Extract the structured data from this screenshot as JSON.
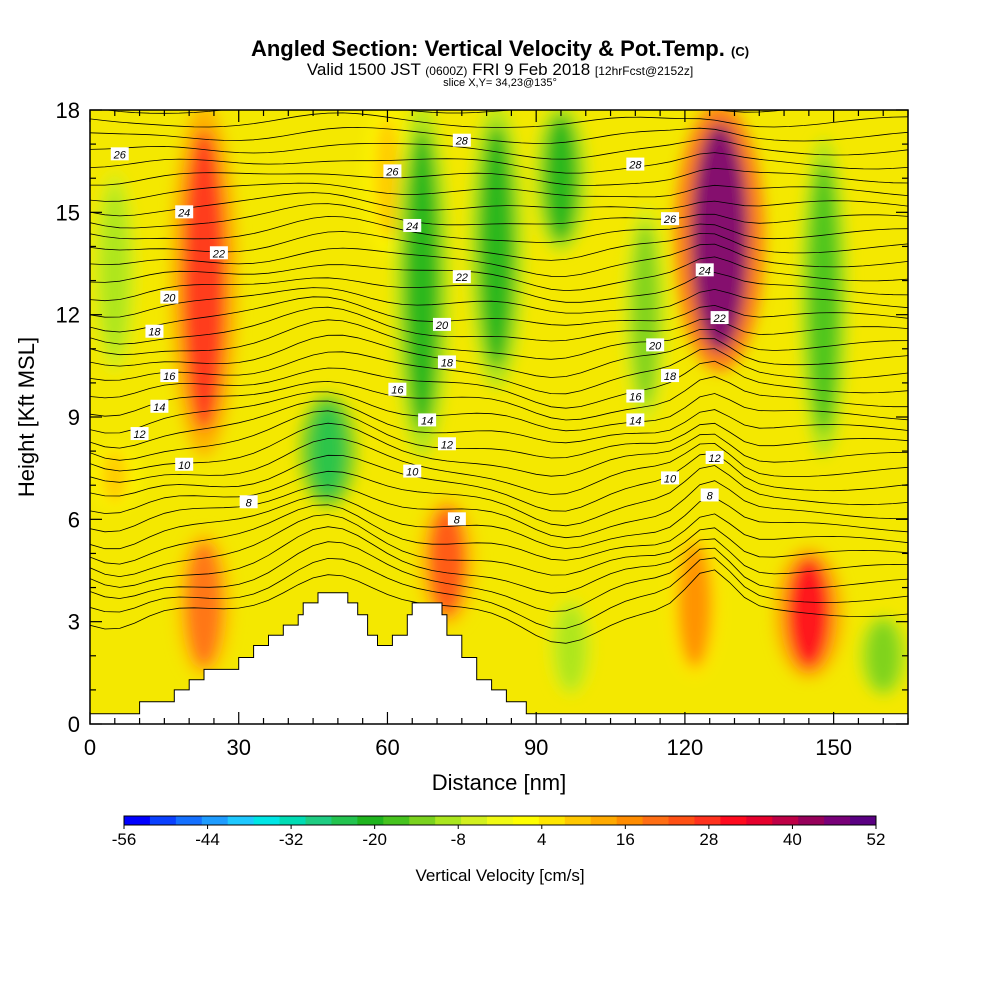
{
  "title": "Angled Section: Vertical Velocity & Pot.Temp.",
  "title_mark": "(C)",
  "subtitle_main": "Valid 1500 JST",
  "subtitle_z": "(0600Z)",
  "subtitle_date": "FRI 9 Feb 2018",
  "subtitle_fcst": "[12hrFcst@2152z]",
  "slice_text": "slice X,Y= 34,23@135°",
  "chart_data": {
    "type": "heatmap",
    "xlabel": "Distance [nm]",
    "ylabel": "Height [Kft MSL]",
    "xlim": [
      0,
      165
    ],
    "ylim": [
      0,
      18
    ],
    "x_ticks": [
      "0",
      "30",
      "60",
      "90",
      "120",
      "150"
    ],
    "y_ticks": [
      "0",
      "3",
      "6",
      "9",
      "12",
      "15",
      "18"
    ],
    "colorbar": {
      "label": "Vertical Velocity [cm/s]",
      "min": -56,
      "max": 52,
      "step": 4,
      "tick_labels": [
        "-56",
        "-44",
        "-32",
        "-20",
        "-8",
        "4",
        "16",
        "28",
        "40",
        "52"
      ],
      "colors": [
        "#0000ff",
        "#0a40ff",
        "#1470ff",
        "#1e9cff",
        "#1ec8ff",
        "#00e6e6",
        "#00dcb4",
        "#1ecc82",
        "#23c34f",
        "#1fb41e",
        "#46c31e",
        "#7ad21e",
        "#aae61e",
        "#d2f01e",
        "#f0fa14",
        "#ffff00",
        "#ffe600",
        "#ffc800",
        "#ffaa00",
        "#ff8c00",
        "#ff6e14",
        "#ff5014",
        "#ff321e",
        "#ff0a1e",
        "#e6002d",
        "#be0046",
        "#96005a",
        "#780078",
        "#5a0082"
      ]
    },
    "terrain_profile": [
      {
        "x": 0,
        "height": 0.3
      },
      {
        "x": 10,
        "height": 0.3
      },
      {
        "x": 10,
        "height": 0.65
      },
      {
        "x": 17,
        "height": 0.65
      },
      {
        "x": 17,
        "height": 1.0
      },
      {
        "x": 20,
        "height": 1.0
      },
      {
        "x": 20,
        "height": 1.3
      },
      {
        "x": 23,
        "height": 1.3
      },
      {
        "x": 23,
        "height": 1.6
      },
      {
        "x": 30,
        "height": 1.6
      },
      {
        "x": 30,
        "height": 1.95
      },
      {
        "x": 33,
        "height": 1.95
      },
      {
        "x": 33,
        "height": 2.3
      },
      {
        "x": 36,
        "height": 2.3
      },
      {
        "x": 36,
        "height": 2.6
      },
      {
        "x": 39,
        "height": 2.6
      },
      {
        "x": 39,
        "height": 2.9
      },
      {
        "x": 42,
        "height": 2.9
      },
      {
        "x": 42,
        "height": 3.2
      },
      {
        "x": 43,
        "height": 3.2
      },
      {
        "x": 43,
        "height": 3.55
      },
      {
        "x": 46,
        "height": 3.55
      },
      {
        "x": 46,
        "height": 3.85
      },
      {
        "x": 52,
        "height": 3.85
      },
      {
        "x": 52,
        "height": 3.55
      },
      {
        "x": 54,
        "height": 3.55
      },
      {
        "x": 54,
        "height": 3.2
      },
      {
        "x": 56,
        "height": 3.2
      },
      {
        "x": 56,
        "height": 2.6
      },
      {
        "x": 58,
        "height": 2.6
      },
      {
        "x": 58,
        "height": 2.3
      },
      {
        "x": 61,
        "height": 2.3
      },
      {
        "x": 61,
        "height": 2.6
      },
      {
        "x": 64,
        "height": 2.6
      },
      {
        "x": 64,
        "height": 3.2
      },
      {
        "x": 65,
        "height": 3.2
      },
      {
        "x": 65,
        "height": 3.55
      },
      {
        "x": 71,
        "height": 3.55
      },
      {
        "x": 71,
        "height": 3.2
      },
      {
        "x": 72,
        "height": 3.2
      },
      {
        "x": 72,
        "height": 2.6
      },
      {
        "x": 75,
        "height": 2.6
      },
      {
        "x": 75,
        "height": 1.95
      },
      {
        "x": 78,
        "height": 1.95
      },
      {
        "x": 78,
        "height": 1.3
      },
      {
        "x": 81,
        "height": 1.3
      },
      {
        "x": 81,
        "height": 1.0
      },
      {
        "x": 84,
        "height": 1.0
      },
      {
        "x": 84,
        "height": 0.65
      },
      {
        "x": 88,
        "height": 0.65
      },
      {
        "x": 88,
        "height": 0.3
      },
      {
        "x": 165,
        "height": 0.3
      }
    ],
    "updraft_cores": [
      {
        "x": 23,
        "zmin": 8,
        "zmax": 18,
        "w": 32
      },
      {
        "x": 23,
        "zmin": 1.5,
        "zmax": 5.5,
        "w": 24
      },
      {
        "x": 127,
        "zmin": 10.5,
        "zmax": 18,
        "w": 52
      },
      {
        "x": 145,
        "zmin": 1.5,
        "zmax": 5,
        "w": 34
      },
      {
        "x": 72,
        "zmin": 3,
        "zmax": 6.5,
        "w": 26
      },
      {
        "x": 122,
        "zmin": 1.5,
        "zmax": 5.5,
        "w": 20
      },
      {
        "x": 5,
        "zmin": 6.5,
        "zmax": 8,
        "w": 12
      },
      {
        "x": 60,
        "zmin": 14,
        "zmax": 18,
        "w": 10
      }
    ],
    "downdraft_cores": [
      {
        "x": 48,
        "zmin": 6.5,
        "zmax": 9.5,
        "w": -24
      },
      {
        "x": 67,
        "zmin": 8,
        "zmax": 18,
        "w": -22
      },
      {
        "x": 82,
        "zmin": 10,
        "zmax": 18,
        "w": -22
      },
      {
        "x": 95,
        "zmin": 14,
        "zmax": 18,
        "w": -20
      },
      {
        "x": 148,
        "zmin": 8,
        "zmax": 17,
        "w": -16
      },
      {
        "x": 112,
        "zmin": 9,
        "zmax": 15,
        "w": -12
      },
      {
        "x": 5,
        "zmin": 10.5,
        "zmax": 16,
        "w": -10
      },
      {
        "x": 160,
        "zmin": 1,
        "zmax": 3,
        "w": -14
      },
      {
        "x": 97,
        "zmin": 1,
        "zmax": 3.5,
        "w": -10
      }
    ],
    "pot_temp_contour_labels": [
      {
        "text": "26",
        "x": 6,
        "z": 16.7
      },
      {
        "text": "24",
        "x": 19,
        "z": 15.0
      },
      {
        "text": "22",
        "x": 26,
        "z": 13.8
      },
      {
        "text": "20",
        "x": 16,
        "z": 12.5
      },
      {
        "text": "18",
        "x": 13,
        "z": 11.5
      },
      {
        "text": "16",
        "x": 16,
        "z": 10.2
      },
      {
        "text": "14",
        "x": 14,
        "z": 9.3
      },
      {
        "text": "12",
        "x": 10,
        "z": 8.5
      },
      {
        "text": "10",
        "x": 19,
        "z": 7.6
      },
      {
        "text": "8",
        "x": 32,
        "z": 6.5
      },
      {
        "text": "26",
        "x": 61,
        "z": 16.2
      },
      {
        "text": "24",
        "x": 65,
        "z": 14.6
      },
      {
        "text": "22",
        "x": 75,
        "z": 13.1
      },
      {
        "text": "20",
        "x": 71,
        "z": 11.7
      },
      {
        "text": "18",
        "x": 72,
        "z": 10.6
      },
      {
        "text": "16",
        "x": 62,
        "z": 9.8
      },
      {
        "text": "14",
        "x": 68,
        "z": 8.9
      },
      {
        "text": "12",
        "x": 72,
        "z": 8.2
      },
      {
        "text": "10",
        "x": 65,
        "z": 7.4
      },
      {
        "text": "8",
        "x": 74,
        "z": 6.0
      },
      {
        "text": "28",
        "x": 75,
        "z": 17.1
      },
      {
        "text": "28",
        "x": 110,
        "z": 16.4
      },
      {
        "text": "26",
        "x": 117,
        "z": 14.8
      },
      {
        "text": "24",
        "x": 124,
        "z": 13.3
      },
      {
        "text": "22",
        "x": 127,
        "z": 11.9
      },
      {
        "text": "20",
        "x": 114,
        "z": 11.1
      },
      {
        "text": "18",
        "x": 117,
        "z": 10.2
      },
      {
        "text": "16",
        "x": 110,
        "z": 9.6
      },
      {
        "text": "14",
        "x": 110,
        "z": 8.9
      },
      {
        "text": "12",
        "x": 126,
        "z": 7.8
      },
      {
        "text": "10",
        "x": 117,
        "z": 7.2
      },
      {
        "text": "8",
        "x": 125,
        "z": 6.7
      }
    ]
  }
}
